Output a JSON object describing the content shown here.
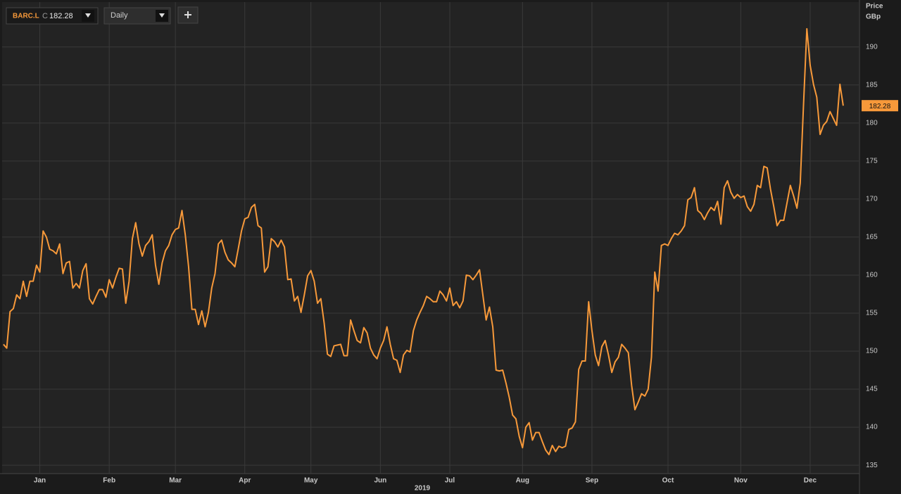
{
  "chart_data": {
    "type": "line",
    "symbol": "BARC.L",
    "close_prefix": "C",
    "interval": "Daily",
    "y_label": "Price",
    "y_unit": "GBp",
    "x_label": "2019",
    "series": [
      {
        "name": "BARC.L",
        "color": "#f7993a",
        "values": [
          150.9,
          150.4,
          155.2,
          155.6,
          157.4,
          156.9,
          159.2,
          157.2,
          159.2,
          159.2,
          161.3,
          160.4,
          165.8,
          165.0,
          163.4,
          163.2,
          162.8,
          164.1,
          160.2,
          161.6,
          161.8,
          158.3,
          158.9,
          158.3,
          160.6,
          161.5,
          156.9,
          156.2,
          157.2,
          158.1,
          158.1,
          157.1,
          159.4,
          158.3,
          159.7,
          160.9,
          160.8,
          156.3,
          159.2,
          164.8,
          166.9,
          164.1,
          162.5,
          163.9,
          164.4,
          165.3,
          161.3,
          158.8,
          161.6,
          163.2,
          163.9,
          165.3,
          166.0,
          166.2,
          168.5,
          165.3,
          161.1,
          155.5,
          155.5,
          153.5,
          155.3,
          153.2,
          155.1,
          158.3,
          160.2,
          164.1,
          164.6,
          163.0,
          162.0,
          161.6,
          161.1,
          163.4,
          165.8,
          167.4,
          167.6,
          168.9,
          169.3,
          166.5,
          166.2,
          160.4,
          161.1,
          164.8,
          164.4,
          163.7,
          164.6,
          163.7,
          159.4,
          159.5,
          156.6,
          157.2,
          155.1,
          157.4,
          159.9,
          160.6,
          159.2,
          156.3,
          156.9,
          153.7,
          149.6,
          149.3,
          150.7,
          150.8,
          150.9,
          149.4,
          149.4,
          154.1,
          152.7,
          151.4,
          151.1,
          153.1,
          152.4,
          150.4,
          149.5,
          149.0,
          150.4,
          151.4,
          153.2,
          150.9,
          149.0,
          148.8,
          147.2,
          149.5,
          150.1,
          149.9,
          152.7,
          154.1,
          155.1,
          156.0,
          157.2,
          156.9,
          156.5,
          156.5,
          157.9,
          157.4,
          156.6,
          158.3,
          156.0,
          156.5,
          155.7,
          156.6,
          160.0,
          159.9,
          159.4,
          160.0,
          160.7,
          157.4,
          154.1,
          155.8,
          153.2,
          147.5,
          147.4,
          147.5,
          145.8,
          143.9,
          141.6,
          141.1,
          138.8,
          137.3,
          140.0,
          140.6,
          138.3,
          139.3,
          139.3,
          138.1,
          137.0,
          136.4,
          137.6,
          136.8,
          137.5,
          137.3,
          137.5,
          139.7,
          139.9,
          140.7,
          147.6,
          148.7,
          148.7,
          156.5,
          152.7,
          149.5,
          148.1,
          150.6,
          151.4,
          149.5,
          147.2,
          148.6,
          149.2,
          150.9,
          150.4,
          149.8,
          145.5,
          142.3,
          143.3,
          144.4,
          144.1,
          145.0,
          149.2,
          160.4,
          157.9,
          163.9,
          164.1,
          163.9,
          164.8,
          165.5,
          165.3,
          165.8,
          166.5,
          169.9,
          170.2,
          171.5,
          168.5,
          168.1,
          167.3,
          168.2,
          168.9,
          168.5,
          169.7,
          166.7,
          171.5,
          172.4,
          170.9,
          170.1,
          170.6,
          170.2,
          170.4,
          169.0,
          168.4,
          169.3,
          171.8,
          171.5,
          174.3,
          174.1,
          171.3,
          169.0,
          166.5,
          167.2,
          167.2,
          169.5,
          171.8,
          170.4,
          168.8,
          172.1,
          182.5,
          192.4,
          187.6,
          185.1,
          183.4,
          178.5,
          179.7,
          180.2,
          181.5,
          180.6,
          179.7,
          185.1,
          182.28
        ]
      }
    ],
    "xlim": [
      -0.4,
      258.7
    ],
    "xticks": [
      {
        "value": 11,
        "label": "Jan"
      },
      {
        "value": 32,
        "label": "Feb"
      },
      {
        "value": 52,
        "label": "Mar"
      },
      {
        "value": 73,
        "label": "Apr"
      },
      {
        "value": 93,
        "label": "May"
      },
      {
        "value": 114,
        "label": "Jun"
      },
      {
        "value": 135,
        "label": "Jul"
      },
      {
        "value": 157,
        "label": "Aug"
      },
      {
        "value": 178,
        "label": "Sep"
      },
      {
        "value": 201,
        "label": "Oct"
      },
      {
        "value": 223,
        "label": "Nov"
      },
      {
        "value": 244,
        "label": "Dec"
      }
    ],
    "ylim": [
      133.9,
      195.9
    ],
    "yticks": [
      135,
      140,
      145,
      150,
      155,
      160,
      165,
      170,
      175,
      180,
      185,
      190
    ],
    "grid": true
  }
}
